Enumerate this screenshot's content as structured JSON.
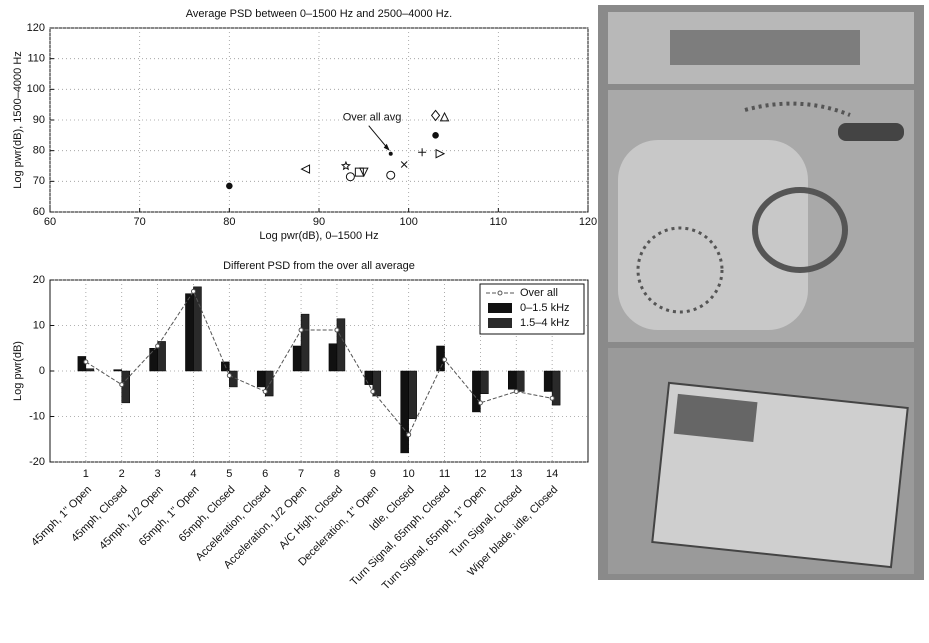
{
  "chart_data": [
    {
      "type": "scatter",
      "title": "Average PSD between 0–1500 Hz and 2500–4000 Hz.",
      "x_label": "Log pwr(dB), 0–1500 Hz",
      "y_label": "Log pwr(dB), 1500–4000 Hz",
      "xlim": [
        60,
        120
      ],
      "xticks": [
        60,
        70,
        80,
        90,
        100,
        110,
        120
      ],
      "ylim": [
        60,
        120
      ],
      "yticks": [
        60,
        70,
        80,
        90,
        100,
        110,
        120
      ],
      "grid": true,
      "annotation": "Over all avg",
      "series": [
        {
          "color": "#111111",
          "x": [
            80,
            88.5,
            93,
            93.5,
            94.5,
            95,
            98,
            99.5,
            101.5,
            98,
            103,
            103.5,
            103,
            104
          ],
          "y": [
            68.5,
            74,
            75,
            71.5,
            73,
            73,
            72,
            75.5,
            79.5,
            79,
            85,
            79,
            91.5,
            91
          ],
          "markers": [
            "filled-star",
            "triangle-left",
            "pentagram",
            "circle",
            "square",
            "triangle-down",
            "circle",
            "x",
            "plus",
            "dot",
            "filled-star",
            "triangle-right",
            "diamond",
            "triangle-up"
          ]
        }
      ]
    },
    {
      "type": "bar",
      "title": "Different PSD from the over all average",
      "y_label": "Log pwr(dB)",
      "categories": [
        "1",
        "2",
        "3",
        "4",
        "5",
        "6",
        "7",
        "8",
        "9",
        "10",
        "11",
        "12",
        "13",
        "14"
      ],
      "condition_labels": [
        "45mph, 1\" Open",
        "45mph, Closed",
        "45mph, 1/2 Open",
        "65mph, 1\" Open",
        "65mph, Closed",
        "Acceleration, Closed",
        "Acceleration, 1/2 Open",
        "A/C High, Closed",
        "Deceleration, 1\" Open",
        "Idle, Closed",
        "Turn Signal, 65mph, Closed",
        "Turn Signal, 65mph, 1\" Open",
        "Turn Signal, Closed",
        "Wiper blade, idle, Closed"
      ],
      "ylim": [
        -20,
        20
      ],
      "yticks": [
        -20,
        -10,
        0,
        10,
        20
      ],
      "grid": true,
      "series": [
        {
          "name": "Over all",
          "type": "line",
          "color": "#555555",
          "values": [
            2,
            -3,
            5.5,
            17.5,
            -1,
            -4.5,
            9,
            9,
            -4.5,
            -14,
            2.5,
            -7,
            -4.5,
            -6
          ]
        },
        {
          "name": "0–1.5 kHz",
          "type": "bar",
          "color": "#111111",
          "values": [
            3.2,
            0.3,
            5,
            17,
            2,
            -3.5,
            5.5,
            6,
            -3,
            -18,
            5.5,
            -9,
            -4,
            -4.5
          ]
        },
        {
          "name": "1.5–4 kHz",
          "type": "bar",
          "color": "#2a2a2a",
          "values": [
            0.5,
            -7,
            6.5,
            18.5,
            -3.5,
            -5.5,
            12.5,
            11.5,
            -5.5,
            -10.5,
            0,
            -5,
            -4.5,
            -7.5
          ]
        }
      ]
    }
  ]
}
